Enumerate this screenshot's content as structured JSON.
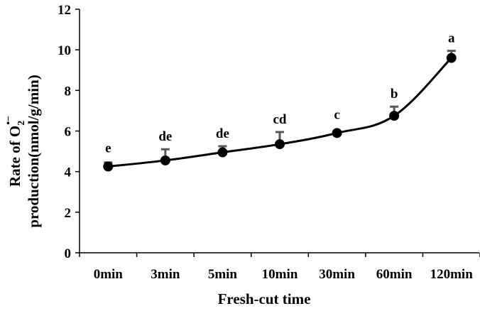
{
  "chart_data": {
    "type": "line",
    "xlabel": "Fresh-cut time",
    "ylabel_line1": "Rate of O",
    "ylabel_sub": "2",
    "ylabel_sup": "•−",
    "ylabel_line2": "production(nmol/g/min)",
    "ylim": [
      0,
      12
    ],
    "yticks": [
      0,
      2,
      4,
      6,
      8,
      10,
      12
    ],
    "categories": [
      "0min",
      "3min",
      "5min",
      "10min",
      "30min",
      "60min",
      "120min"
    ],
    "series": [
      {
        "values": [
          4.25,
          4.55,
          4.95,
          5.35,
          5.9,
          6.75,
          9.6
        ],
        "errors": [
          0.2,
          0.55,
          0.3,
          0.6,
          0.0,
          0.45,
          0.35
        ],
        "labels": [
          "e",
          "de",
          "de",
          "cd",
          "c",
          "b",
          "a"
        ]
      }
    ],
    "grid": false,
    "legend": "none",
    "colors": {
      "line": "#000000",
      "marker": "#000000",
      "error_bar": "#595959"
    }
  }
}
